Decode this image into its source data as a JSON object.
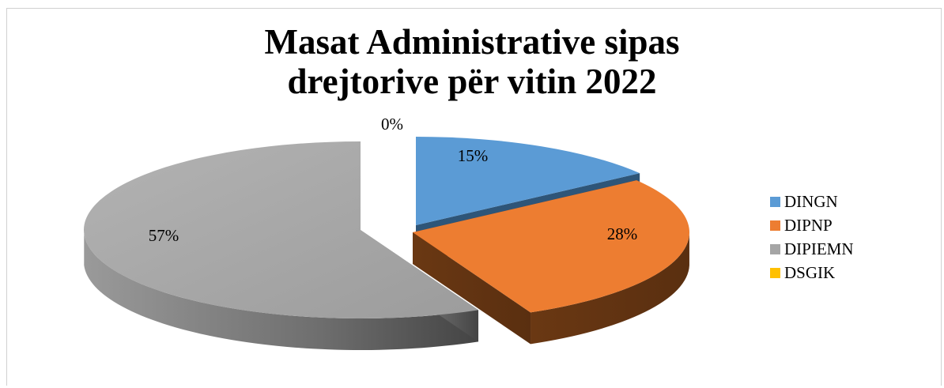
{
  "chart_data": {
    "type": "pie",
    "title_lines": [
      "Masat Administrative sipas",
      "drejtorive për vitin 2022"
    ],
    "categories": [
      "DINGN",
      "DIPNP",
      "DIPIEMN",
      "DSGIK"
    ],
    "values": [
      15,
      28,
      57,
      0
    ],
    "data_labels": [
      "15%",
      "28%",
      "57%",
      "0%"
    ],
    "colors": [
      "#5b9bd5",
      "#ed7d31",
      "#a5a5a5",
      "#ffc000"
    ],
    "legend_position": "right",
    "style": "3d-exploded"
  }
}
